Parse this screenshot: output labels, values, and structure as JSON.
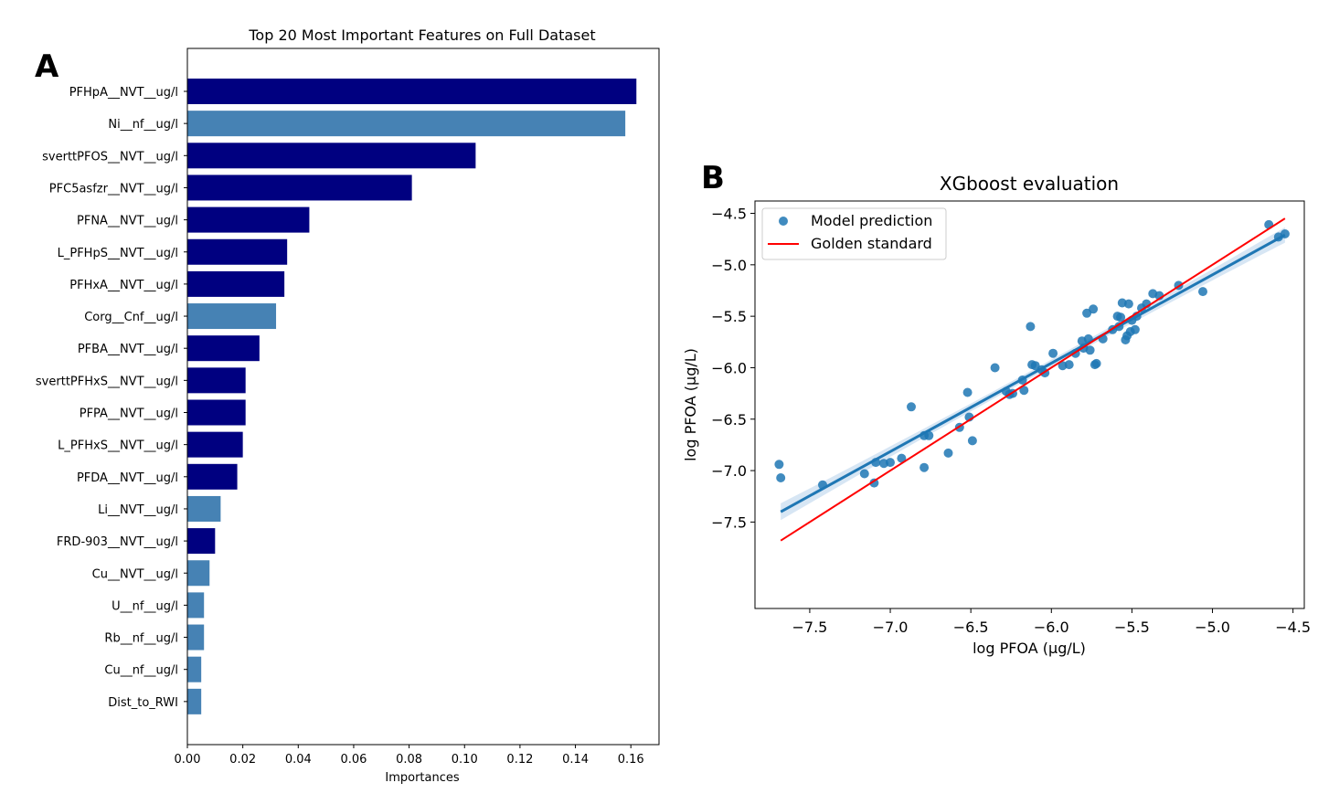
{
  "panels": {
    "a": "A",
    "b": "B"
  },
  "chart_data": [
    {
      "type": "bar",
      "orientation": "horizontal",
      "title": "Top 20 Most Important Features on Full Dataset",
      "xlabel": "Importances",
      "ylabel": "",
      "xlim": [
        0,
        0.17
      ],
      "xticks": [
        "0.00",
        "0.02",
        "0.04",
        "0.06",
        "0.08",
        "0.10",
        "0.12",
        "0.14",
        "0.16"
      ],
      "colors": {
        "dark": "#000080",
        "light": "#4682b4"
      },
      "categories": [
        "PFHpA__NVT__ug/l",
        "Ni__nf__ug/l",
        "sverttPFOS__NVT__ug/l",
        "PFC5asfzr__NVT__ug/l",
        "PFNA__NVT__ug/l",
        "L_PFHpS__NVT__ug/l",
        "PFHxA__NVT__ug/l",
        "Corg__Cnf__ug/l",
        "PFBA__NVT__ug/l",
        "sverttPFHxS__NVT__ug/l",
        "PFPA__NVT__ug/l",
        "L_PFHxS__NVT__ug/l",
        "PFDA__NVT__ug/l",
        "Li__NVT__ug/l",
        "FRD-903__NVT__ug/l",
        "Cu__NVT__ug/l",
        "U__nf__ug/l",
        "Rb__nf__ug/l",
        "Cu__nf__ug/l",
        "Dist_to_RWI"
      ],
      "values": [
        0.162,
        0.158,
        0.104,
        0.081,
        0.044,
        0.036,
        0.035,
        0.032,
        0.026,
        0.021,
        0.021,
        0.02,
        0.018,
        0.012,
        0.01,
        0.008,
        0.006,
        0.006,
        0.005,
        0.005
      ],
      "bar_color": [
        "dark",
        "light",
        "dark",
        "dark",
        "dark",
        "dark",
        "dark",
        "light",
        "dark",
        "dark",
        "dark",
        "dark",
        "dark",
        "light",
        "dark",
        "light",
        "light",
        "light",
        "light",
        "light"
      ]
    },
    {
      "type": "scatter",
      "title": "XGboost evaluation",
      "xlabel": "log PFOA (µg/L)",
      "ylabel": "log PFOA (µg/L)",
      "xlim": [
        -7.84,
        -4.43
      ],
      "ylim": [
        -8.34,
        -4.38
      ],
      "xticks": [
        "−7.5",
        "−7.0",
        "−6.5",
        "−6.0",
        "−5.5",
        "−5.0",
        "−4.5"
      ],
      "yticks": [
        "−4.5",
        "−5.0",
        "−5.5",
        "−6.0",
        "−6.5",
        "−7.0",
        "−7.5"
      ],
      "legend": {
        "placement": "top-left",
        "items": [
          "Model prediction",
          "Golden standard"
        ]
      },
      "colors": {
        "points": "#1f77b4",
        "regression": "#1f77b4",
        "band": "#c6dbef",
        "identity": "#ff0000"
      },
      "series": [
        {
          "name": "Model prediction",
          "x": [
            -7.69,
            -7.68,
            -7.42,
            -7.16,
            -7.1,
            -7.09,
            -7.04,
            -7.0,
            -6.93,
            -6.87,
            -6.79,
            -6.79,
            -6.76,
            -6.64,
            -6.57,
            -6.52,
            -6.51,
            -6.49,
            -6.35,
            -6.28,
            -6.26,
            -6.24,
            -6.18,
            -6.17,
            -6.13,
            -6.12,
            -6.1,
            -6.06,
            -6.04,
            -5.99,
            -5.93,
            -5.89,
            -5.85,
            -5.81,
            -5.8,
            -5.78,
            -5.77,
            -5.76,
            -5.74,
            -5.73,
            -5.72,
            -5.68,
            -5.62,
            -5.59,
            -5.58,
            -5.57,
            -5.56,
            -5.54,
            -5.53,
            -5.52,
            -5.51,
            -5.5,
            -5.48,
            -5.47,
            -5.44,
            -5.41,
            -5.37,
            -5.33,
            -5.21,
            -5.06,
            -4.65,
            -4.59,
            -4.55
          ],
          "y": [
            -6.94,
            -7.07,
            -7.14,
            -7.03,
            -7.12,
            -6.92,
            -6.93,
            -6.92,
            -6.88,
            -6.38,
            -6.66,
            -6.97,
            -6.66,
            -6.83,
            -6.58,
            -6.24,
            -6.48,
            -6.71,
            -6.0,
            -6.23,
            -6.26,
            -6.25,
            -6.12,
            -6.22,
            -5.6,
            -5.97,
            -5.98,
            -6.02,
            -6.05,
            -5.86,
            -5.98,
            -5.97,
            -5.86,
            -5.74,
            -5.81,
            -5.47,
            -5.72,
            -5.83,
            -5.43,
            -5.97,
            -5.96,
            -5.72,
            -5.63,
            -5.5,
            -5.6,
            -5.51,
            -5.37,
            -5.73,
            -5.69,
            -5.38,
            -5.65,
            -5.54,
            -5.63,
            -5.5,
            -5.42,
            -5.38,
            -5.28,
            -5.3,
            -5.2,
            -5.26,
            -4.61,
            -4.73,
            -4.7
          ]
        }
      ],
      "lines": [
        {
          "name": "Golden standard",
          "x": [
            -7.68,
            -4.55
          ],
          "y": [
            -7.68,
            -4.55
          ]
        },
        {
          "name": "",
          "x": [
            -7.68,
            -4.55
          ],
          "y": [
            -7.4,
            -4.71
          ]
        }
      ]
    }
  ]
}
